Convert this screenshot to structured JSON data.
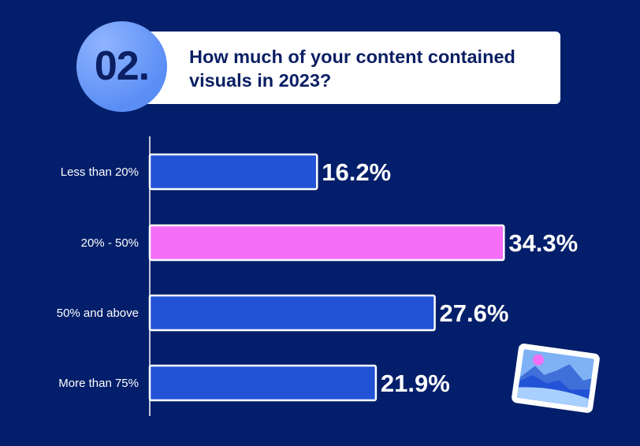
{
  "header": {
    "number": "02.",
    "title": "How much of your content contained visuals in 2023?"
  },
  "chart_data": {
    "type": "bar",
    "orientation": "horizontal",
    "title": "How much of your content contained visuals in 2023?",
    "categories": [
      "Less than 20%",
      "20% - 50%",
      "50% and above",
      "More than 75%"
    ],
    "values": [
      16.2,
      34.3,
      27.6,
      21.9
    ],
    "data_labels": [
      "16.2%",
      "34.3%",
      "27.6%",
      "21.9%"
    ],
    "unit": "%",
    "xlim": [
      0,
      40
    ],
    "grid": false,
    "colors": [
      "#2253d6",
      "#f46ef7",
      "#2253d6",
      "#2253d6"
    ],
    "highlight_color": "#f46ef7"
  },
  "decoration": {
    "icon": "landscape-photo-icon"
  },
  "colors": {
    "background": "#031f6b",
    "bar": "#2253d6",
    "highlight": "#f46ef7",
    "border": "#ffffff"
  }
}
